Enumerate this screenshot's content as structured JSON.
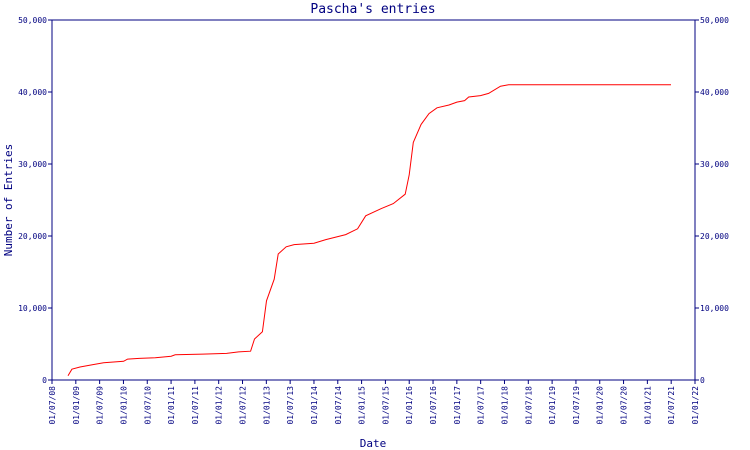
{
  "chart_data": {
    "type": "line",
    "title": "Pascha's entries",
    "xlabel": "Date",
    "ylabel": "Number of Entries",
    "grid": false,
    "legend": "none",
    "line_color": "#ff0000",
    "axis_color": "#000080",
    "xlim": [
      "2008-07-01",
      "2022-01-01"
    ],
    "ylim": [
      0,
      50000
    ],
    "x_ticks": [
      "01/07/08",
      "01/01/09",
      "01/07/09",
      "01/01/10",
      "01/07/10",
      "01/01/11",
      "01/07/11",
      "01/01/12",
      "01/07/12",
      "01/01/13",
      "01/07/13",
      "01/01/14",
      "01/07/14",
      "01/01/15",
      "01/07/15",
      "01/01/16",
      "01/07/16",
      "01/01/17",
      "01/07/17",
      "01/01/18",
      "01/07/18",
      "01/01/19",
      "01/07/19",
      "01/01/20",
      "01/07/20",
      "01/01/21",
      "01/07/21",
      "01/01/22"
    ],
    "y_ticks": [
      "0",
      "10,000",
      "20,000",
      "30,000",
      "40,000",
      "50,000"
    ],
    "series": [
      {
        "points": [
          [
            "2008-11-01",
            600
          ],
          [
            "2008-12-01",
            1500
          ],
          [
            "2009-02-01",
            1800
          ],
          [
            "2009-05-01",
            2100
          ],
          [
            "2009-08-01",
            2400
          ],
          [
            "2010-01-01",
            2600
          ],
          [
            "2010-02-01",
            2900
          ],
          [
            "2010-05-01",
            3000
          ],
          [
            "2010-09-01",
            3100
          ],
          [
            "2011-01-01",
            3300
          ],
          [
            "2011-02-01",
            3500
          ],
          [
            "2011-09-01",
            3600
          ],
          [
            "2012-03-01",
            3700
          ],
          [
            "2012-06-01",
            3900
          ],
          [
            "2012-09-01",
            4000
          ],
          [
            "2012-10-01",
            5700
          ],
          [
            "2012-12-01",
            6700
          ],
          [
            "2013-01-01",
            11000
          ],
          [
            "2013-03-01",
            14000
          ],
          [
            "2013-04-01",
            17500
          ],
          [
            "2013-06-01",
            18500
          ],
          [
            "2013-08-01",
            18800
          ],
          [
            "2014-01-01",
            19000
          ],
          [
            "2014-04-01",
            19500
          ],
          [
            "2014-09-01",
            20200
          ],
          [
            "2014-12-01",
            21000
          ],
          [
            "2015-02-01",
            22800
          ],
          [
            "2015-06-01",
            23800
          ],
          [
            "2015-09-01",
            24500
          ],
          [
            "2015-12-01",
            25800
          ],
          [
            "2016-01-01",
            28500
          ],
          [
            "2016-02-01",
            33000
          ],
          [
            "2016-04-01",
            35500
          ],
          [
            "2016-06-01",
            37000
          ],
          [
            "2016-08-01",
            37800
          ],
          [
            "2016-11-01",
            38200
          ],
          [
            "2017-01-01",
            38600
          ],
          [
            "2017-03-01",
            38800
          ],
          [
            "2017-04-01",
            39300
          ],
          [
            "2017-07-01",
            39500
          ],
          [
            "2017-09-01",
            39800
          ],
          [
            "2017-12-01",
            40800
          ],
          [
            "2018-02-01",
            41000
          ],
          [
            "2021-07-01",
            41000
          ]
        ]
      }
    ]
  }
}
